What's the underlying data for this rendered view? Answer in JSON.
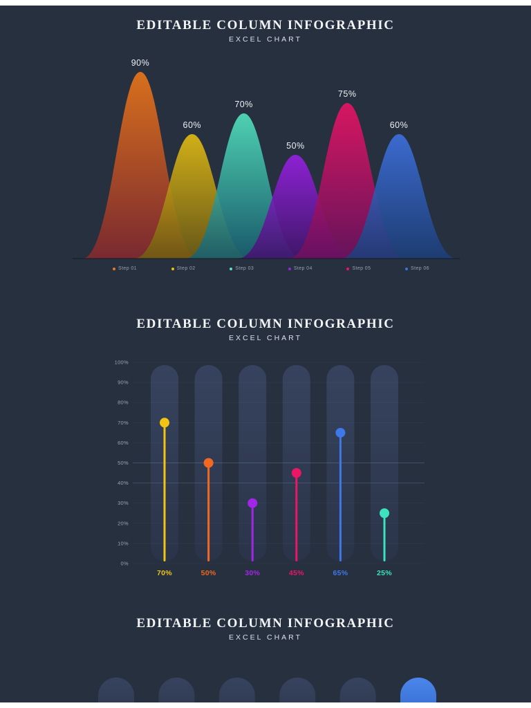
{
  "page": {
    "background": "#26303f",
    "frame_color": "#ffffff"
  },
  "sections": {
    "curve_section": {
      "title": "EDITABLE COLUMN INFOGRAPHIC",
      "subtitle": "EXCEL CHART"
    },
    "lollipop_section": {
      "title": "EDITABLE COLUMN INFOGRAPHIC",
      "subtitle": "EXCEL CHART"
    },
    "bar_section": {
      "title": "EDITABLE COLUMN INFOGRAPHIC",
      "subtitle": "EXCEL CHART"
    }
  },
  "chart_data": [
    {
      "type": "area",
      "variant": "overlapping-bell-curves",
      "title": "EDITABLE COLUMN INFOGRAPHIC",
      "subtitle": "EXCEL CHART",
      "ylim": [
        0,
        100
      ],
      "grid": false,
      "legend_position": "bottom",
      "series": [
        {
          "name": "Step 01",
          "value": 90,
          "data_label": "90%",
          "color_top": "#f07818",
          "color_bottom": "#85282e"
        },
        {
          "name": "Step 02",
          "value": 60,
          "data_label": "60%",
          "color_top": "#e9c113",
          "color_bottom": "#6f5c12"
        },
        {
          "name": "Step 03",
          "value": 70,
          "data_label": "70%",
          "color_top": "#54e7c2",
          "color_bottom": "#175f70"
        },
        {
          "name": "Step 04",
          "value": 50,
          "data_label": "50%",
          "color_top": "#9a20e8",
          "color_bottom": "#43136e"
        },
        {
          "name": "Step 05",
          "value": 75,
          "data_label": "75%",
          "color_top": "#ef1365",
          "color_bottom": "#6d105f"
        },
        {
          "name": "Step 06",
          "value": 60,
          "data_label": "60%",
          "color_top": "#3f72e3",
          "color_bottom": "#1c3e78"
        }
      ]
    },
    {
      "type": "lollipop",
      "title": "EDITABLE COLUMN INFOGRAPHIC",
      "subtitle": "EXCEL CHART",
      "ylim": [
        0,
        100
      ],
      "grid": true,
      "y_ticks": [
        "100%",
        "90%",
        "80%",
        "70%",
        "60%",
        "50%",
        "40%",
        "30%",
        "20%",
        "10%",
        "0%"
      ],
      "emphasized_gridlines": [
        "50%",
        "40%"
      ],
      "track_color_top": "#37435e",
      "track_color_bottom": "#2a3449",
      "series": [
        {
          "value": 70,
          "data_label": "70%",
          "color": "#f3c413"
        },
        {
          "value": 50,
          "data_label": "50%",
          "color": "#f06821"
        },
        {
          "value": 30,
          "data_label": "30%",
          "color": "#a226e8"
        },
        {
          "value": 45,
          "data_label": "45%",
          "color": "#ea1767"
        },
        {
          "value": 65,
          "data_label": "65%",
          "color": "#3f78e8"
        },
        {
          "value": 25,
          "data_label": "25%",
          "color": "#3ce4bd"
        }
      ]
    },
    {
      "type": "bar",
      "variant": "partially-visible-column-tracks",
      "title": "EDITABLE COLUMN INFOGRAPHIC",
      "subtitle": "EXCEL CHART",
      "track_color_top": "#37435e",
      "track_color_bottom": "#2a3449",
      "columns": [
        {
          "filled": false
        },
        {
          "filled": false
        },
        {
          "filled": false
        },
        {
          "filled": false
        },
        {
          "filled": false
        },
        {
          "filled": true,
          "color_top": "#4c86ea",
          "color_bottom": "#2a5ec2"
        }
      ]
    }
  ]
}
